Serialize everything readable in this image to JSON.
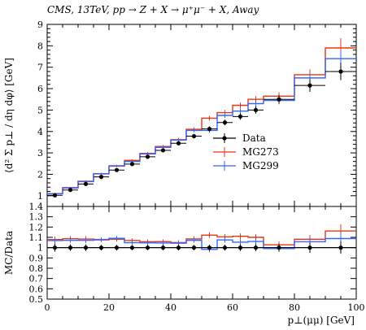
{
  "chart_data": {
    "type": "line",
    "title": "CMS, 13TeV, pp → Z + X → μ⁺μ⁻ + X, Away",
    "xlabel": "p⊥(μμ) [GeV]",
    "ylabel": "⟨d² Σ p⊥ / dη dφ⟩ [GeV]",
    "ratio_ylabel": "MC/Data",
    "xlim": [
      0,
      100
    ],
    "ylim": [
      0.5,
      9
    ],
    "ratio_ylim": [
      0.5,
      1.4
    ],
    "x_ticks": [
      "0",
      "20",
      "40",
      "60",
      "80",
      "100"
    ],
    "y_ticks": [
      "1",
      "2",
      "3",
      "4",
      "5",
      "6",
      "7",
      "8",
      "9"
    ],
    "ratio_y_ticks": [
      "0.5",
      "0.6",
      "0.7",
      "0.8",
      "0.9",
      "1",
      "1.1",
      "1.2",
      "1.3",
      "1.4"
    ],
    "legend_position": "lower-right",
    "bin_edges": [
      0,
      5,
      10,
      15,
      20,
      25,
      30,
      35,
      40,
      45,
      50,
      55,
      60,
      65,
      70,
      80,
      90,
      100
    ],
    "series": [
      {
        "name": "Data",
        "kind": "points",
        "color": "#000000",
        "x": [
          2.5,
          7.5,
          12.5,
          17.5,
          22.5,
          27.5,
          32.5,
          37.5,
          42.5,
          47.5,
          52.5,
          57.5,
          62.5,
          67.5,
          75,
          85,
          95
        ],
        "values": [
          1.02,
          1.27,
          1.55,
          1.88,
          2.2,
          2.48,
          2.82,
          3.12,
          3.45,
          3.78,
          4.12,
          4.42,
          4.7,
          5.0,
          5.5,
          6.15,
          6.8
        ],
        "errors": [
          0.04,
          0.04,
          0.05,
          0.05,
          0.06,
          0.06,
          0.07,
          0.08,
          0.09,
          0.1,
          0.12,
          0.13,
          0.15,
          0.17,
          0.2,
          0.3,
          0.4
        ]
      },
      {
        "name": "MG273",
        "kind": "histogram",
        "color": "#ee3311",
        "values": [
          1.1,
          1.38,
          1.68,
          2.02,
          2.38,
          2.65,
          2.98,
          3.3,
          3.62,
          4.1,
          4.62,
          4.88,
          5.22,
          5.5,
          5.65,
          6.65,
          7.9
        ],
        "errors": [
          0.03,
          0.03,
          0.04,
          0.04,
          0.05,
          0.05,
          0.06,
          0.07,
          0.08,
          0.09,
          0.11,
          0.12,
          0.13,
          0.15,
          0.18,
          0.25,
          0.45
        ]
      },
      {
        "name": "MG299",
        "kind": "histogram",
        "color": "#3366ff",
        "values": [
          1.09,
          1.36,
          1.66,
          2.03,
          2.4,
          2.6,
          2.95,
          3.26,
          3.6,
          4.05,
          4.05,
          4.75,
          4.95,
          5.3,
          5.45,
          6.5,
          7.4
        ],
        "errors": [
          0.03,
          0.03,
          0.04,
          0.04,
          0.05,
          0.05,
          0.06,
          0.07,
          0.08,
          0.09,
          0.11,
          0.12,
          0.13,
          0.15,
          0.18,
          0.25,
          0.4
        ]
      }
    ]
  }
}
